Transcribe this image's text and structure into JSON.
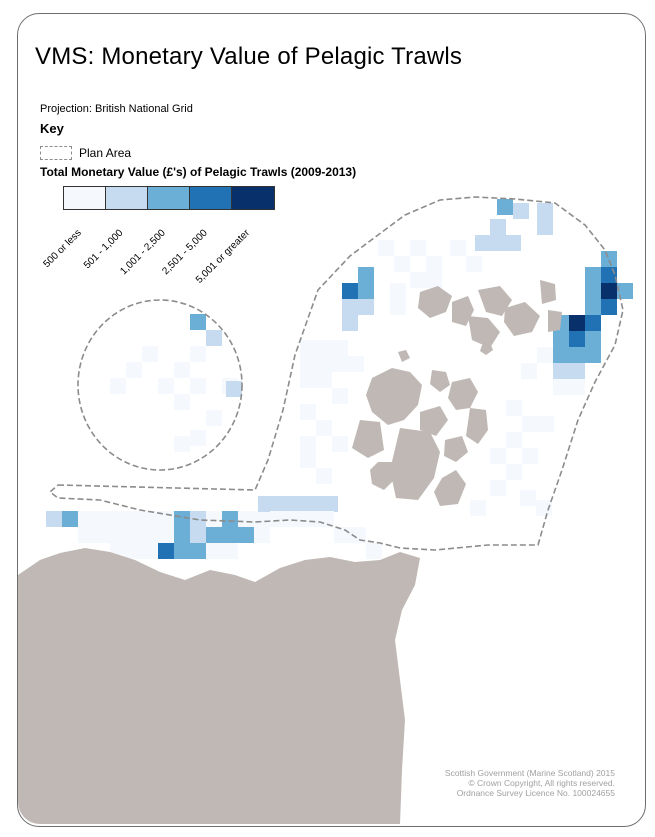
{
  "title": "VMS: Monetary Value of Pelagic Trawls",
  "projection": "Projection: British National Grid",
  "key": {
    "heading": "Key",
    "plan_area_label": "Plan Area",
    "value_heading": "Total Monetary Value (£'s) of Pelagic Trawls (2009-2013)",
    "classes": [
      {
        "label": "500 or less",
        "color": "#f5f9fe"
      },
      {
        "label": "501 - 1,000",
        "color": "#c6dbef"
      },
      {
        "label": "1,001 - 2,500",
        "color": "#6baed6"
      },
      {
        "label": "2,501 - 5,000",
        "color": "#2171b5"
      },
      {
        "label": "5,001 or greater",
        "color": "#08306b"
      }
    ]
  },
  "colors": {
    "land": "#bfb8b4",
    "plan_boundary": "#8c8c8c",
    "frame": "#6e6e6e"
  },
  "credits": [
    "Scottish Government (Marine Scotland) 2015",
    "© Crown Copyright, All rights reserved.",
    "Ordnance Survey Licence No. 100024655"
  ]
}
